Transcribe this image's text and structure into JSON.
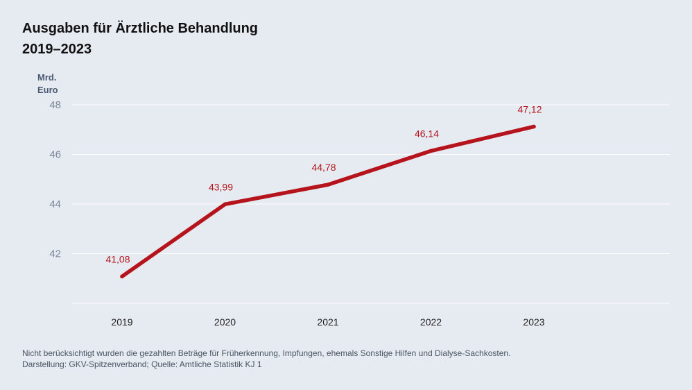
{
  "chart_data": {
    "type": "line",
    "title_line1": "Ausgaben für Ärztliche Behandlung",
    "title_line2": "2019–2023",
    "unit_line1": "Mrd.",
    "unit_line2": "Euro",
    "categories": [
      "2019",
      "2020",
      "2021",
      "2022",
      "2023"
    ],
    "values": [
      41.08,
      43.99,
      44.78,
      46.14,
      47.12
    ],
    "value_labels": [
      "41,08",
      "43,99",
      "44,78",
      "46,14",
      "47,12"
    ],
    "yticks": [
      42,
      44,
      46,
      48
    ],
    "ytick_labels": [
      "42",
      "44",
      "46",
      "48"
    ],
    "ylim": [
      40,
      48
    ],
    "grid": true,
    "colors": {
      "line": "#b5141c",
      "grid": "#ffffff",
      "background": "#e6eaf1"
    }
  },
  "footnote": {
    "line1": "Nicht berücksichtigt wurden die gezahlten Beträge für Früherkennung, Impfungen, ehemals Sonstige Hilfen und Dialyse-Sachkosten.",
    "line2": "Darstellung: GKV-Spitzenverband; Quelle: Amtliche Statistik KJ 1"
  }
}
